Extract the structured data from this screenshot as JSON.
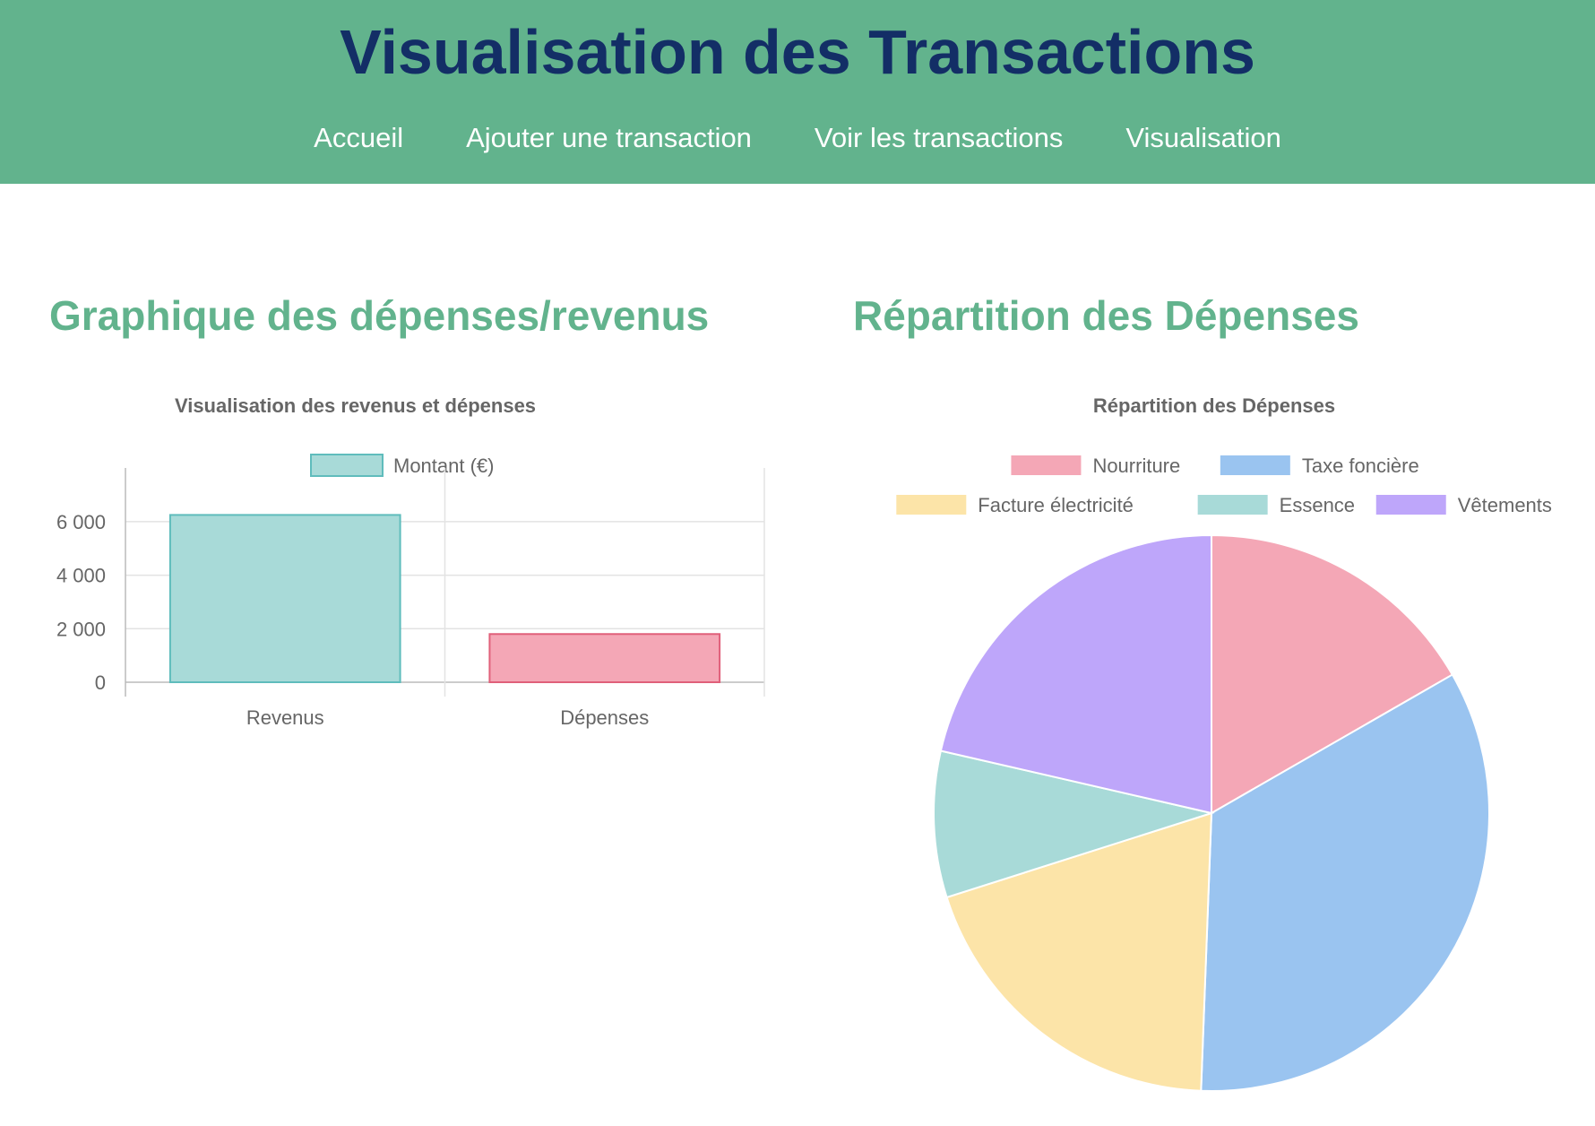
{
  "header": {
    "title": "Visualisation des Transactions",
    "nav": [
      {
        "label": "Accueil"
      },
      {
        "label": "Ajouter une transaction"
      },
      {
        "label": "Voir les transactions"
      },
      {
        "label": "Visualisation"
      }
    ]
  },
  "sections": {
    "bar_heading": "Graphique des dépenses/revenus",
    "pie_heading": "Répartition des Dépenses"
  },
  "chart_data": [
    {
      "type": "bar",
      "title": "Visualisation des revenus et dépenses",
      "legend": "top",
      "categories": [
        "Revenus",
        "Dépenses"
      ],
      "series": [
        {
          "name": "Montant (€)",
          "values": [
            6250,
            1800
          ],
          "colors": [
            "#a8dad8",
            "#f4a7b6"
          ],
          "border_colors": [
            "#5fbcbc",
            "#e0607a"
          ]
        }
      ],
      "ylim": [
        0,
        7000
      ],
      "yticks": [
        "0",
        "2 000",
        "4 000",
        "6 000"
      ],
      "ytick_values": [
        0,
        2000,
        4000,
        6000
      ],
      "grid": true
    },
    {
      "type": "pie",
      "title": "Répartition des Dépenses",
      "legend": "top",
      "labels": [
        "Nourriture",
        "Taxe foncière",
        "Facture électricité",
        "Essence",
        "Vêtements"
      ],
      "values": [
        16.7,
        33.9,
        19.5,
        8.5,
        21.4
      ],
      "colors": [
        "#f4a7b6",
        "#9ac4f0",
        "#fce4a8",
        "#a8dad8",
        "#bea6fa"
      ]
    }
  ]
}
